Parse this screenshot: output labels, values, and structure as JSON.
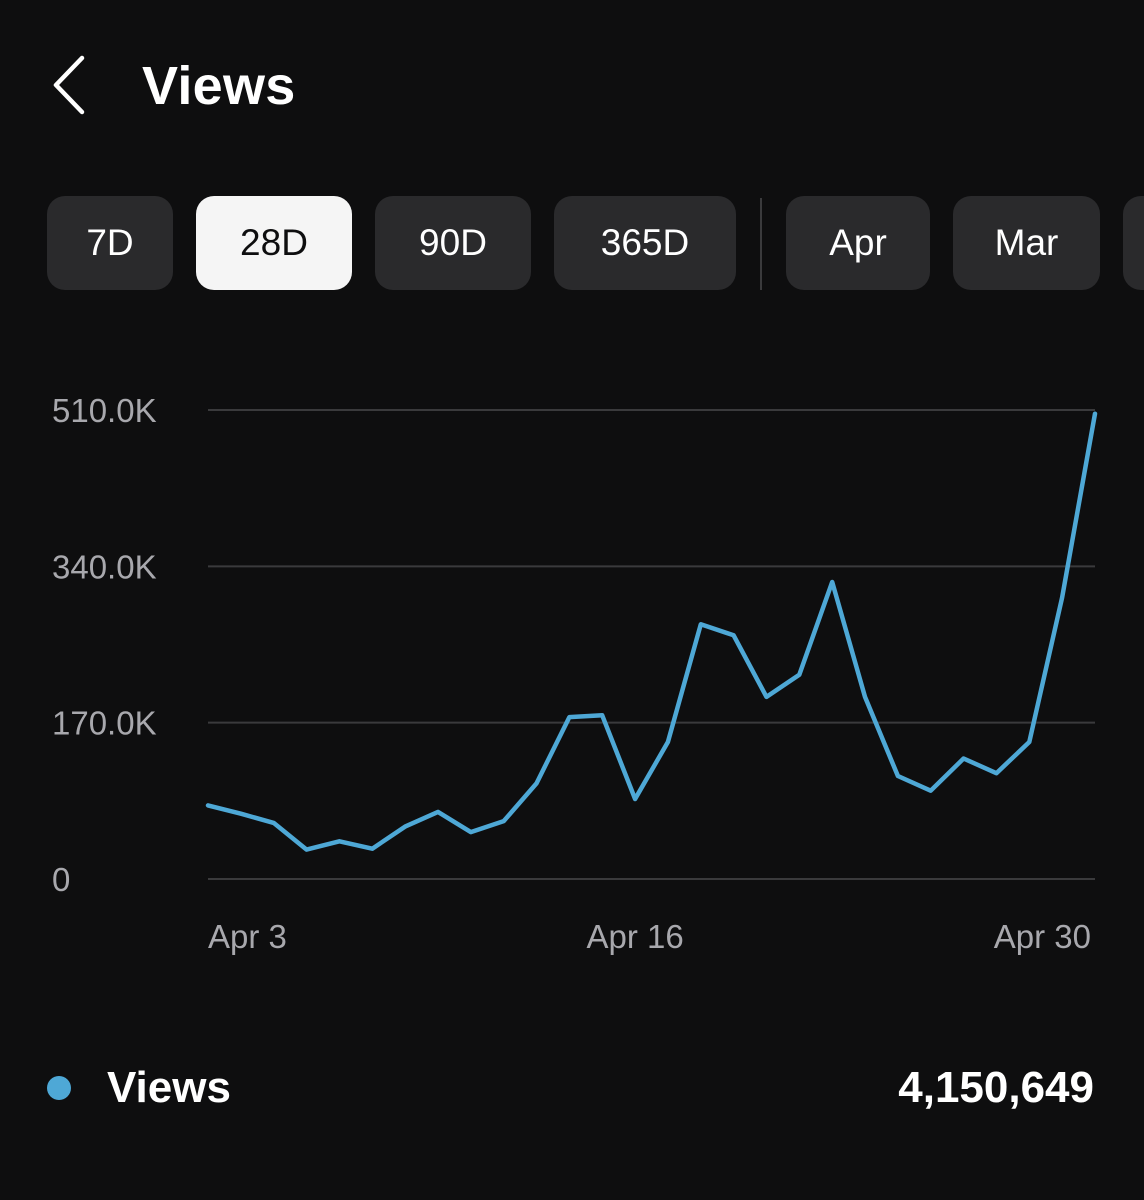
{
  "header": {
    "back_icon": "chevron-left-icon",
    "title": "Views"
  },
  "filters": {
    "chips": [
      {
        "label": "7D",
        "active": false
      },
      {
        "label": "28D",
        "active": true
      },
      {
        "label": "90D",
        "active": false
      },
      {
        "label": "365D",
        "active": false
      },
      {
        "label": "Apr",
        "active": false
      },
      {
        "label": "Mar",
        "active": false
      },
      {
        "label": "",
        "active": false
      }
    ]
  },
  "colors": {
    "background": "#0e0e0f",
    "line": "#4ea8d6",
    "gridline": "#3a3a3c",
    "chip": "#2a2a2c",
    "chip_active": "#f5f5f5",
    "axis_text": "#a8a8ad"
  },
  "chart_data": {
    "type": "line",
    "x": [
      "Apr 3",
      "Apr 4",
      "Apr 5",
      "Apr 6",
      "Apr 7",
      "Apr 8",
      "Apr 9",
      "Apr 10",
      "Apr 11",
      "Apr 12",
      "Apr 13",
      "Apr 14",
      "Apr 15",
      "Apr 16",
      "Apr 17",
      "Apr 18",
      "Apr 19",
      "Apr 20",
      "Apr 21",
      "Apr 22",
      "Apr 23",
      "Apr 24",
      "Apr 25",
      "Apr 26",
      "Apr 27",
      "Apr 28",
      "Apr 29",
      "Apr 30"
    ],
    "series": [
      {
        "name": "Views",
        "values": [
          80000,
          71000,
          61000,
          32000,
          41000,
          33000,
          57000,
          73000,
          51000,
          63000,
          104000,
          176000,
          178000,
          87000,
          149000,
          277000,
          265000,
          198000,
          222000,
          323000,
          198000,
          112000,
          96000,
          131000,
          115000,
          149000,
          306000,
          506000
        ]
      }
    ],
    "yticks": [
      0,
      170000,
      340000,
      510000
    ],
    "ytick_labels": [
      "0",
      "170.0K",
      "340.0K",
      "510.0K"
    ],
    "xtick_labels": [
      "Apr 3",
      "Apr 16",
      "Apr 30"
    ],
    "ylim": [
      0,
      510000
    ],
    "grid": true,
    "title": "",
    "xlabel": "",
    "ylabel": ""
  },
  "legend": {
    "label": "Views",
    "total": "4,150,649"
  }
}
